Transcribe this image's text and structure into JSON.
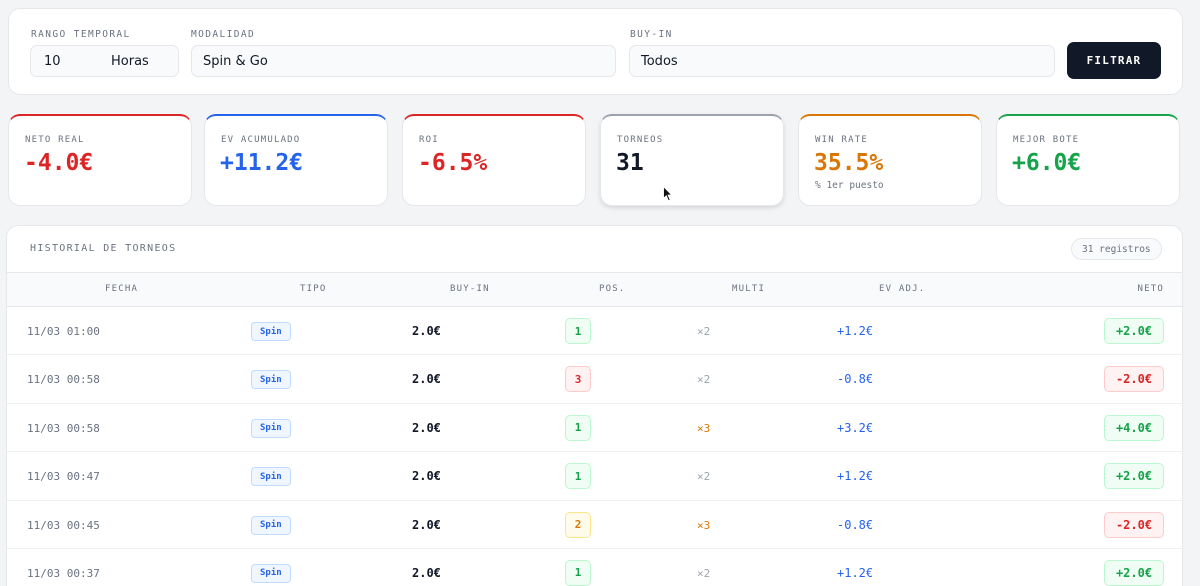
{
  "filters": {
    "range": {
      "label": "RANGO TEMPORAL",
      "value": "10",
      "unit": "Horas"
    },
    "mode": {
      "label": "MODALIDAD",
      "value": "Spin & Go"
    },
    "buyin": {
      "label": "BUY-IN",
      "value": "Todos"
    },
    "button_label": "FILTRAR"
  },
  "stats": [
    {
      "label": "NETO REAL",
      "value": "-4.0€",
      "color": "#dc2626",
      "accent": "#dc2626"
    },
    {
      "label": "EV ACUMULADO",
      "value": "+11.2€",
      "color": "#2563eb",
      "accent": "#2563eb"
    },
    {
      "label": "ROI",
      "value": "-6.5%",
      "color": "#dc2626",
      "accent": "#dc2626"
    },
    {
      "label": "TORNEOS",
      "value": "31",
      "color": "#111827",
      "accent": "#9ca3af"
    },
    {
      "label": "WIN RATE",
      "value": "35.5%",
      "sub": "% 1er puesto",
      "color": "#d97706",
      "accent": "#d97706"
    },
    {
      "label": "MEJOR BOTE",
      "value": "+6.0€",
      "color": "#16a34a",
      "accent": "#16a34a"
    }
  ],
  "history": {
    "title": "HISTORIAL DE TORNEOS",
    "count_badge": "31 registros",
    "columns": [
      "FECHA",
      "TIPO",
      "BUY-IN",
      "POS.",
      "MULTI",
      "EV ADJ.",
      "NETO"
    ],
    "rows": [
      {
        "date": "11/03 01:00",
        "type": "Spin",
        "buyin": "2.0€",
        "pos": "1",
        "multi": "×2",
        "ev": "+1.2€",
        "neto": "+2.0€"
      },
      {
        "date": "11/03 00:58",
        "type": "Spin",
        "buyin": "2.0€",
        "pos": "3",
        "multi": "×2",
        "ev": "-0.8€",
        "neto": "-2.0€"
      },
      {
        "date": "11/03 00:58",
        "type": "Spin",
        "buyin": "2.0€",
        "pos": "1",
        "multi": "×3",
        "ev": "+3.2€",
        "neto": "+4.0€"
      },
      {
        "date": "11/03 00:47",
        "type": "Spin",
        "buyin": "2.0€",
        "pos": "1",
        "multi": "×2",
        "ev": "+1.2€",
        "neto": "+2.0€"
      },
      {
        "date": "11/03 00:45",
        "type": "Spin",
        "buyin": "2.0€",
        "pos": "2",
        "multi": "×3",
        "ev": "-0.8€",
        "neto": "-2.0€"
      },
      {
        "date": "11/03 00:37",
        "type": "Spin",
        "buyin": "2.0€",
        "pos": "1",
        "multi": "×2",
        "ev": "+1.2€",
        "neto": "+2.0€"
      }
    ]
  }
}
